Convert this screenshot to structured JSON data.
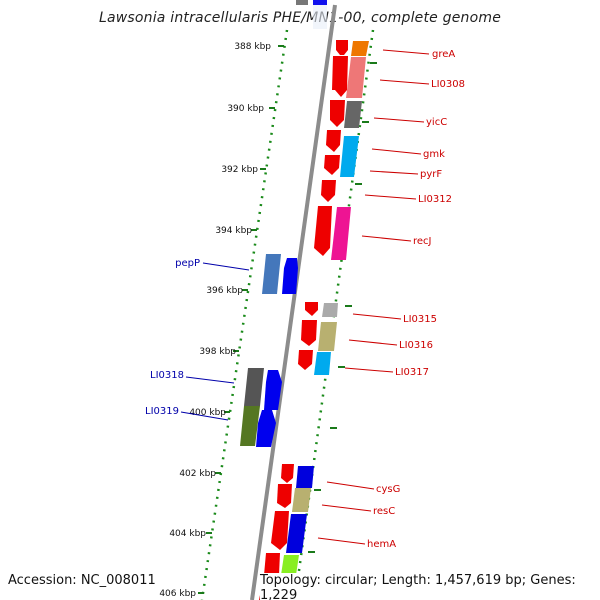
{
  "title": "Lawsonia intracellularis PHE/MN1-00, complete genome",
  "footer": {
    "accession": "Accession: NC_008011",
    "info": "Topology: circular; Length: 1,457,619 bp; Genes: 1,229"
  },
  "colors": {
    "backbone": "#8a8a8a",
    "tick": "#1a7a1a",
    "right_label": "#cc0000",
    "left_label": "#0000aa"
  },
  "kbp_ticks": [
    "388 kbp",
    "390 kbp",
    "392 kbp",
    "394 kbp",
    "396 kbp",
    "398 kbp",
    "400 kbp",
    "402 kbp",
    "404 kbp",
    "406 kbp"
  ],
  "right_genes": [
    "greA",
    "LI0308",
    "yicC",
    "gmk",
    "pyrF",
    "LI0312",
    "recJ",
    "LI0315",
    "LI0316",
    "LI0317",
    "cysG",
    "resC",
    "hemA"
  ],
  "left_genes": [
    "pepP",
    "LI0318",
    "LI0319"
  ]
}
